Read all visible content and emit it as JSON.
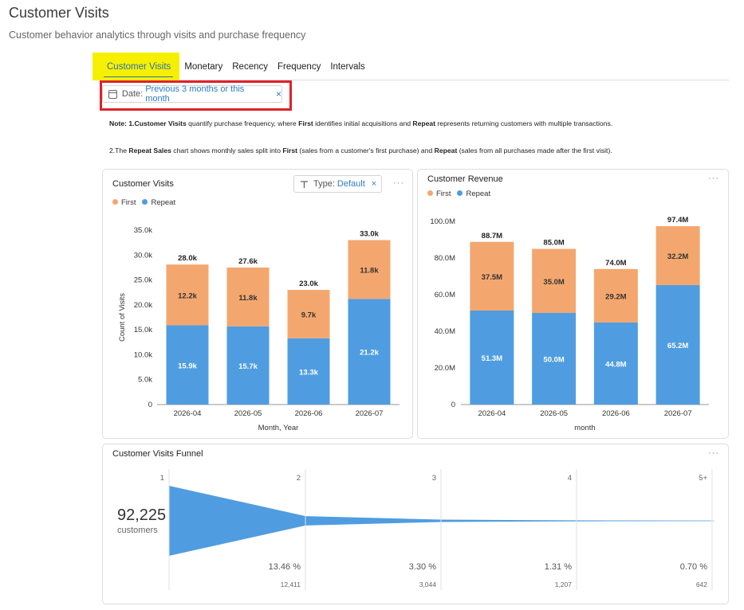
{
  "page": {
    "title": "Customer Visits",
    "subtitle": "Customer behavior analytics through visits and purchase frequency"
  },
  "tabs": [
    {
      "label": "Customer Visits",
      "active": true
    },
    {
      "label": "Monetary"
    },
    {
      "label": "Recency"
    },
    {
      "label": "Frequency"
    },
    {
      "label": "Intervals"
    }
  ],
  "filter": {
    "label": "Date:",
    "value": "Previous 3 months or this month",
    "close": "×"
  },
  "notes": {
    "line1": {
      "prefix": "Note: 1.",
      "bold1": "Customer Visits",
      "text1": " quantify purchase frequency, where ",
      "bold2": "First",
      "text2": " identifies initial acquisitions and ",
      "bold3": "Repeat",
      "text3": " represents returning customers with multiple transactions."
    },
    "line2": {
      "prefix": "2.The ",
      "bold1": "Repeat Sales",
      "text1": " chart shows monthly sales split into ",
      "bold2": "First",
      "text2": " (sales from a customer's first purchase) and ",
      "bold3": "Repeat",
      "text3": " (sales from all purchases made after the first visit)."
    }
  },
  "colors": {
    "first": "#f3a76e",
    "repeat": "#4f9de0",
    "funnel": "#4f9de0",
    "accent": "#2e7bc4",
    "highlight": "#f6f000",
    "border_red": "#e0202a"
  },
  "visits_card": {
    "title": "Customer Visits",
    "type_label": "Type:",
    "type_value": "Default",
    "type_close": "×",
    "menu": "···",
    "legend": [
      "First",
      "Repeat"
    ]
  },
  "revenue_card": {
    "title": "Customer Revenue",
    "menu": "···",
    "legend": [
      "First",
      "Repeat"
    ]
  },
  "chart_data": [
    {
      "type": "bar",
      "stacked": true,
      "title": "Customer Visits",
      "xlabel": "Month, Year",
      "ylabel": "Count of Visits",
      "ylim": [
        0,
        35000
      ],
      "yticks": [
        "0",
        "5.0k",
        "10.0k",
        "15.0k",
        "20.0k",
        "25.0k",
        "30.0k",
        "35.0k"
      ],
      "categories": [
        "2026-04",
        "2026-05",
        "2026-06",
        "2026-07"
      ],
      "series": [
        {
          "name": "Repeat",
          "values": [
            15900,
            15700,
            13300,
            21200
          ],
          "labels": [
            "15.9k",
            "15.7k",
            "13.3k",
            "21.2k"
          ]
        },
        {
          "name": "First",
          "values": [
            12200,
            11800,
            9700,
            11800
          ],
          "labels": [
            "12.2k",
            "11.8k",
            "9.7k",
            "11.8k"
          ]
        }
      ],
      "totals": [
        "28.0k",
        "27.6k",
        "23.0k",
        "33.0k"
      ],
      "legend": "top-left",
      "grid": false
    },
    {
      "type": "bar",
      "stacked": true,
      "title": "Customer Revenue",
      "xlabel": "month",
      "ylabel": "",
      "ylim": [
        0,
        100000000
      ],
      "yticks": [
        "0",
        "20.0M",
        "40.0M",
        "60.0M",
        "80.0M",
        "100.0M"
      ],
      "categories": [
        "2026-04",
        "2026-05",
        "2026-06",
        "2026-07"
      ],
      "series": [
        {
          "name": "Repeat",
          "values": [
            51300000,
            50000000,
            44800000,
            65200000
          ],
          "labels": [
            "51.3M",
            "50.0M",
            "44.8M",
            "65.2M"
          ]
        },
        {
          "name": "First",
          "values": [
            37500000,
            35000000,
            29200000,
            32200000
          ],
          "labels": [
            "37.5M",
            "35.0M",
            "29.2M",
            "32.2M"
          ]
        }
      ],
      "totals": [
        "88.7M",
        "85.0M",
        "74.0M",
        "97.4M"
      ],
      "legend": "top-left",
      "grid": false
    }
  ],
  "funnel": {
    "title": "Customer Visits Funnel",
    "menu": "···",
    "total": "92,225",
    "total_label": "customers",
    "stages": [
      "1",
      "2",
      "3",
      "4",
      "5+"
    ],
    "fractions": [
      1.0,
      0.1346,
      0.033,
      0.0131,
      0.007
    ],
    "percents": [
      "",
      "13.46 %",
      "3.30 %",
      "1.31 %",
      "0.70 %"
    ],
    "counts": [
      "",
      "12,411",
      "3,044",
      "1,207",
      "642"
    ]
  }
}
